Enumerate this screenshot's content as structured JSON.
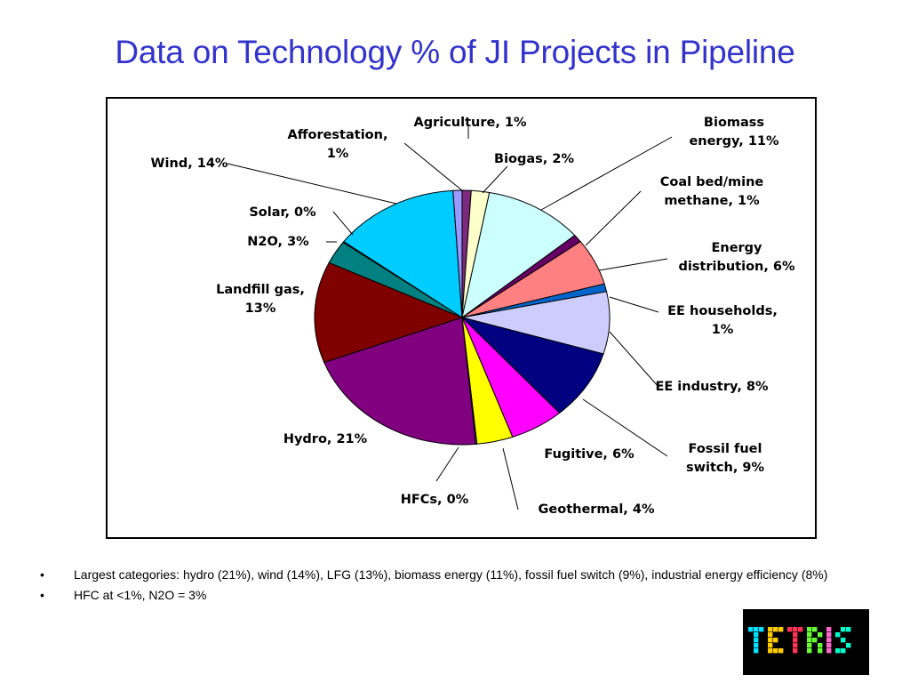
{
  "slide": {
    "title": "Data on Technology % of JI Projects in Pipeline"
  },
  "chart_data": {
    "type": "pie",
    "title": "",
    "slices": [
      {
        "label": "Agriculture, 1%",
        "name": "Agriculture",
        "value": 1,
        "color": "#7b2a7d"
      },
      {
        "label": "Biogas, 2%",
        "name": "Biogas",
        "value": 2,
        "color": "#ffffcc"
      },
      {
        "label": "Biomass energy, 11%",
        "name": "Biomass energy",
        "value": 11,
        "color": "#ccffff"
      },
      {
        "label": "Coal bed/mine methane, 1%",
        "name": "Coal bed/mine methane",
        "value": 1,
        "color": "#660066"
      },
      {
        "label": "Energy distribution, 6%",
        "name": "Energy distribution",
        "value": 6,
        "color": "#ff8080"
      },
      {
        "label": "EE households, 1%",
        "name": "EE households",
        "value": 1,
        "color": "#0066cc"
      },
      {
        "label": "EE industry, 8%",
        "name": "EE industry",
        "value": 8,
        "color": "#ccccff"
      },
      {
        "label": "Fossil fuel switch, 9%",
        "name": "Fossil fuel switch",
        "value": 9,
        "color": "#000080"
      },
      {
        "label": "Fugitive, 6%",
        "name": "Fugitive",
        "value": 6,
        "color": "#ff00ff"
      },
      {
        "label": "Geothermal, 4%",
        "name": "Geothermal",
        "value": 4,
        "color": "#ffff00"
      },
      {
        "label": "HFCs, 0%",
        "name": "HFCs",
        "value": 0,
        "color": "#00ffff"
      },
      {
        "label": "Hydro, 21%",
        "name": "Hydro",
        "value": 21,
        "color": "#800080"
      },
      {
        "label": "Landfill gas, 13%",
        "name": "Landfill gas",
        "value": 13,
        "color": "#800000"
      },
      {
        "label": "N2O, 3%",
        "name": "N2O",
        "value": 3,
        "color": "#008080"
      },
      {
        "label": "Solar, 0%",
        "name": "Solar",
        "value": 0,
        "color": "#0000ff"
      },
      {
        "label": "Wind, 14%",
        "name": "Wind",
        "value": 14,
        "color": "#00ccff"
      },
      {
        "label": "Afforestation, 1%",
        "name": "Afforestation",
        "value": 1,
        "color": "#9999ff"
      }
    ]
  },
  "bullets": [
    "Largest categories: hydro (21%), wind (14%), LFG (13%), biomass energy (11%), fossil fuel switch (9%), industrial energy efficiency (8%)",
    "HFC at <1%, N2O = 3%"
  ],
  "bullet_marker": "•",
  "logo": {
    "text": "TETRIS",
    "letter_colors": [
      "#00e0ff",
      "#ffcc00",
      "#ff3355",
      "#66ff33",
      "#ff66cc",
      "#00ffcc"
    ]
  }
}
